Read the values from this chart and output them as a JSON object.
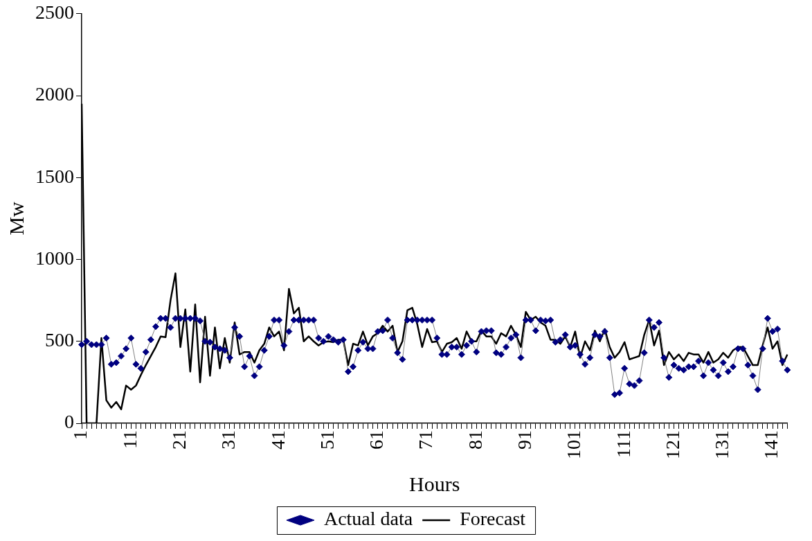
{
  "chart_data": {
    "type": "line",
    "xlabel": "Hours",
    "ylabel": "Mw",
    "categories": [
      "1",
      null,
      null,
      null,
      null,
      null,
      null,
      null,
      null,
      null,
      "11",
      null,
      null,
      null,
      null,
      null,
      null,
      null,
      null,
      null,
      "21",
      null,
      null,
      null,
      null,
      null,
      null,
      null,
      null,
      null,
      "31",
      null,
      null,
      null,
      null,
      null,
      null,
      null,
      null,
      null,
      "41",
      null,
      null,
      null,
      null,
      null,
      null,
      null,
      null,
      null,
      "51",
      null,
      null,
      null,
      null,
      null,
      null,
      null,
      null,
      null,
      "61",
      null,
      null,
      null,
      null,
      null,
      null,
      null,
      null,
      null,
      "71",
      null,
      null,
      null,
      null,
      null,
      null,
      null,
      null,
      null,
      "81",
      null,
      null,
      null,
      null,
      null,
      null,
      null,
      null,
      null,
      "91",
      null,
      null,
      null,
      null,
      null,
      null,
      null,
      null,
      null,
      "101",
      null,
      null,
      null,
      null,
      null,
      null,
      null,
      null,
      null,
      "111",
      null,
      null,
      null,
      null,
      null,
      null,
      null,
      null,
      null,
      "121",
      null,
      null,
      null,
      null,
      null,
      null,
      null,
      null,
      null,
      "131",
      null,
      null,
      null,
      null,
      null,
      null,
      null,
      null,
      null,
      "141",
      null,
      null,
      null
    ],
    "series": [
      {
        "name": "Actual data",
        "color": "#000080",
        "marker": "diamond",
        "values": [
          480,
          500,
          480,
          480,
          480,
          520,
          360,
          370,
          410,
          455,
          520,
          360,
          335,
          435,
          510,
          590,
          640,
          640,
          585,
          640,
          640,
          640,
          640,
          640,
          625,
          500,
          495,
          465,
          455,
          445,
          400,
          585,
          530,
          345,
          410,
          290,
          345,
          445,
          530,
          630,
          630,
          475,
          560,
          630,
          630,
          630,
          630,
          630,
          520,
          500,
          530,
          510,
          495,
          510,
          315,
          345,
          445,
          495,
          455,
          455,
          560,
          565,
          630,
          520,
          430,
          390,
          630,
          630,
          630,
          630,
          630,
          630,
          520,
          420,
          420,
          465,
          465,
          420,
          475,
          500,
          435,
          560,
          565,
          565,
          430,
          420,
          465,
          520,
          540,
          400,
          630,
          630,
          565,
          630,
          625,
          630,
          495,
          510,
          540,
          465,
          475,
          420,
          360,
          400,
          540,
          530,
          560,
          400,
          175,
          185,
          335,
          240,
          230,
          260,
          430,
          630,
          585,
          615,
          400,
          280,
          355,
          335,
          325,
          345,
          345,
          380,
          290,
          370,
          325,
          290,
          370,
          315,
          345,
          455,
          455,
          355,
          290,
          205,
          455,
          640,
          560,
          575,
          380,
          325
        ]
      },
      {
        "name": "Forecast",
        "color": "#000000",
        "marker": "none",
        "values": [
          1950,
          0,
          0,
          0,
          520,
          140,
          95,
          130,
          85,
          230,
          205,
          230,
          295,
          355,
          410,
          465,
          530,
          525,
          750,
          915,
          465,
          695,
          315,
          725,
          250,
          650,
          290,
          585,
          335,
          520,
          370,
          615,
          420,
          435,
          435,
          370,
          445,
          485,
          585,
          530,
          560,
          445,
          820,
          670,
          705,
          500,
          530,
          500,
          475,
          495,
          500,
          495,
          510,
          510,
          355,
          485,
          475,
          560,
          475,
          530,
          550,
          595,
          560,
          595,
          435,
          500,
          690,
          705,
          605,
          465,
          575,
          495,
          500,
          435,
          485,
          495,
          520,
          455,
          560,
          500,
          500,
          565,
          530,
          530,
          485,
          550,
          530,
          595,
          540,
          465,
          680,
          630,
          650,
          615,
          595,
          510,
          510,
          485,
          530,
          465,
          560,
          400,
          500,
          445,
          565,
          500,
          575,
          465,
          400,
          435,
          495,
          390,
          400,
          410,
          540,
          630,
          475,
          565,
          355,
          435,
          390,
          420,
          380,
          430,
          420,
          420,
          370,
          435,
          370,
          390,
          430,
          400,
          445,
          465,
          465,
          410,
          355,
          355,
          475,
          585,
          455,
          500,
          355,
          420
        ]
      }
    ],
    "ylim": [
      0,
      2500
    ],
    "yticks": [
      0,
      500,
      1000,
      1500,
      2000,
      2500
    ],
    "grid": false,
    "legend": "bottom"
  }
}
